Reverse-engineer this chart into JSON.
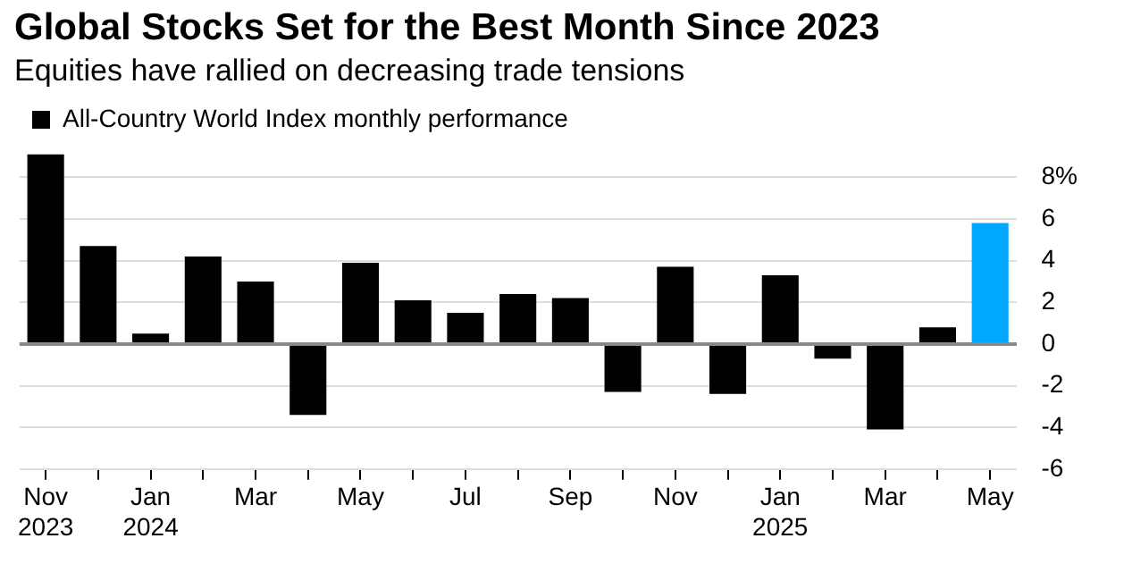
{
  "chart_data": {
    "type": "bar",
    "title": "Global Stocks Set for the Best Month Since 2023",
    "subtitle": "Equities have rallied on decreasing trade tensions",
    "categories": [
      "Nov\n2023",
      null,
      "Jan\n2024",
      null,
      "Mar",
      null,
      "May",
      null,
      "Jul",
      null,
      "Sep",
      null,
      "Nov",
      null,
      "Jan\n2025",
      null,
      "Mar",
      null,
      "May"
    ],
    "series": [
      {
        "name": "All-Country World Index monthly performance",
        "color": "#000000",
        "colors": [
          "#000000",
          "#000000",
          "#000000",
          "#000000",
          "#000000",
          "#000000",
          "#000000",
          "#000000",
          "#000000",
          "#000000",
          "#000000",
          "#000000",
          "#000000",
          "#000000",
          "#000000",
          "#000000",
          "#000000",
          "#000000",
          "#00a8ff"
        ],
        "values": [
          9.1,
          4.7,
          0.5,
          4.2,
          3.0,
          -3.4,
          3.9,
          2.1,
          1.5,
          2.4,
          2.2,
          -2.3,
          3.7,
          -2.4,
          3.3,
          -0.7,
          -4.1,
          0.8,
          5.8
        ]
      }
    ],
    "ylim": [
      -6,
      9.3
    ],
    "yticks": [
      -6,
      -4,
      -2,
      0,
      2,
      4,
      6,
      {
        "value": 8,
        "label": "8%"
      }
    ],
    "grid": "y",
    "legend": "top left"
  }
}
